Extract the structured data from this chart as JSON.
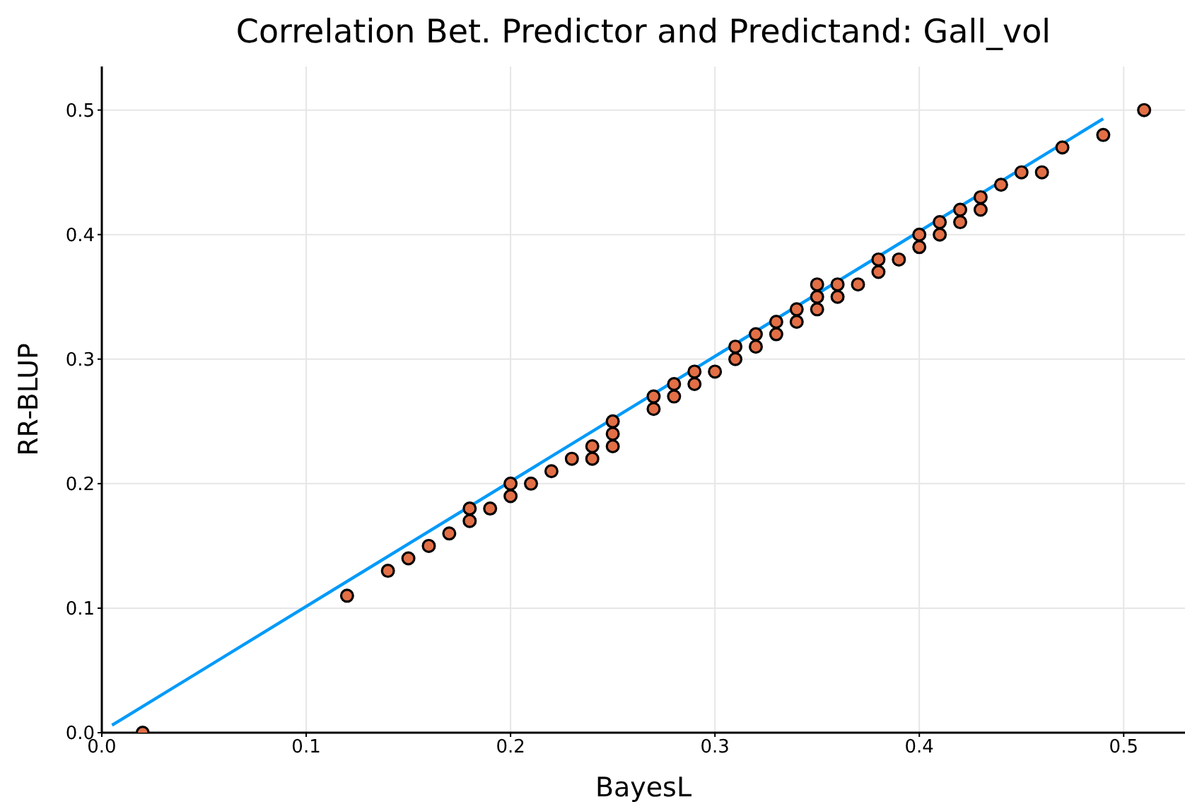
{
  "chart_data": {
    "type": "scatter",
    "title": "Correlation Bet. Predictor and Predictand: Gall_vol",
    "xlabel": "BayesL",
    "ylabel": "RR-BLUP",
    "xlim": [
      0,
      0.53
    ],
    "ylim": [
      0,
      0.535
    ],
    "xticks": [
      {
        "value": 0,
        "label": "0.0"
      },
      0.1,
      0.2,
      0.3,
      0.4,
      0.5
    ],
    "yticks": [
      {
        "value": 0,
        "label": "0.0"
      },
      0.1,
      0.2,
      0.3,
      0.4,
      0.5
    ],
    "grid": true,
    "series": [
      {
        "type": "line",
        "color": "#009af9",
        "marker": "none",
        "line_style": "solid",
        "x": [
          0.005,
          0.49
        ],
        "values": [
          0.006,
          0.493
        ]
      },
      {
        "type": "scatter",
        "color": "#e26f46",
        "marker": "circle",
        "x": [
          0.02,
          0.12,
          0.14,
          0.15,
          0.16,
          0.17,
          0.18,
          0.18,
          0.19,
          0.2,
          0.2,
          0.21,
          0.22,
          0.23,
          0.24,
          0.24,
          0.25,
          0.25,
          0.25,
          0.27,
          0.27,
          0.28,
          0.28,
          0.29,
          0.29,
          0.3,
          0.31,
          0.31,
          0.32,
          0.32,
          0.33,
          0.33,
          0.34,
          0.34,
          0.35,
          0.35,
          0.35,
          0.36,
          0.36,
          0.37,
          0.38,
          0.38,
          0.39,
          0.4,
          0.4,
          0.41,
          0.41,
          0.42,
          0.42,
          0.43,
          0.43,
          0.44,
          0.45,
          0.46,
          0.47,
          0.49,
          0.51
        ],
        "values": [
          0.0,
          0.11,
          0.13,
          0.14,
          0.15,
          0.16,
          0.18,
          0.17,
          0.18,
          0.2,
          0.19,
          0.2,
          0.21,
          0.22,
          0.23,
          0.22,
          0.25,
          0.24,
          0.23,
          0.27,
          0.26,
          0.28,
          0.27,
          0.29,
          0.28,
          0.29,
          0.31,
          0.3,
          0.32,
          0.31,
          0.33,
          0.32,
          0.34,
          0.33,
          0.36,
          0.35,
          0.34,
          0.36,
          0.35,
          0.36,
          0.38,
          0.37,
          0.38,
          0.4,
          0.39,
          0.41,
          0.4,
          0.42,
          0.41,
          0.43,
          0.42,
          0.44,
          0.45,
          0.45,
          0.47,
          0.48,
          0.5
        ]
      }
    ]
  }
}
